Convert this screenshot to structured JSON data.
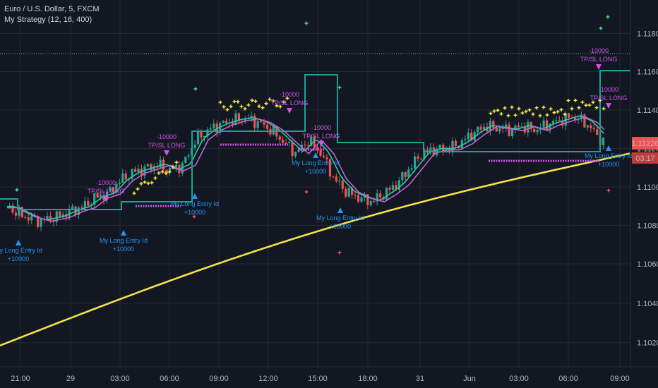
{
  "header": {
    "symbol_title": "Euro / U.S. Dollar, 5, FXCM",
    "study_title": "My Strategy (12, 16, 400)"
  },
  "price_badge": {
    "value": "1.11226",
    "countdown": "03:17",
    "color": "#ef5350"
  },
  "colors": {
    "background": "#131722",
    "grid": "#242733",
    "up_candle": "#26a69a",
    "down_candle": "#ef5350",
    "ma_fast": "#2ecc9a",
    "ma_slow": "#c463d9",
    "ma_long": "#f2e24a",
    "step_line": "#17a395",
    "exit_color": "#d055e8",
    "entry_color": "#2196f3",
    "plus_marker": "#f5e94b",
    "dotted_line": "#4db6ac"
  },
  "chart_data": {
    "type": "candlestick",
    "title": "Euro / U.S. Dollar, 5, FXCM",
    "ylim": [
      1.101,
      1.1197
    ],
    "y_ticks": [
      "1.11800",
      "1.11600",
      "1.11400",
      "1.11200",
      "1.11000",
      "1.10800",
      "1.10600",
      "1.10400",
      "1.10200"
    ],
    "x_ticks": [
      "21:00",
      "29",
      "03:00",
      "06:00",
      "09:00",
      "12:00",
      "15:00",
      "18:00",
      "31",
      "Jun",
      "03:00",
      "06:00",
      "09:00"
    ],
    "grid": true,
    "price_series_approx": [
      {
        "x": "20:00",
        "close": 1.109
      },
      {
        "x": "21:00",
        "close": 1.1085
      },
      {
        "x": "29 00:00",
        "close": 1.1088
      },
      {
        "x": "03:00",
        "close": 1.1094
      },
      {
        "x": "06:00",
        "close": 1.1112
      },
      {
        "x": "09:00",
        "close": 1.1128
      },
      {
        "x": "12:00",
        "close": 1.1135
      },
      {
        "x": "15:00",
        "close": 1.112
      },
      {
        "x": "18:00",
        "close": 1.1095
      },
      {
        "x": "31 00:00",
        "close": 1.1115
      },
      {
        "x": "Jun 00:00",
        "close": 1.1128
      },
      {
        "x": "03:00",
        "close": 1.113
      },
      {
        "x": "06:00",
        "close": 1.1135
      },
      {
        "x": "09:00",
        "close": 1.1123
      }
    ],
    "long_ma_approx": [
      {
        "x": "20:00",
        "value": 1.10185
      },
      {
        "x": "03:00",
        "value": 1.1036
      },
      {
        "x": "09:00",
        "value": 1.1055
      },
      {
        "x": "15:00",
        "value": 1.108
      },
      {
        "x": "31 00:00",
        "value": 1.1098
      },
      {
        "x": "03:00",
        "value": 1.1106
      },
      {
        "x": "09:00",
        "value": 1.1117
      }
    ],
    "annotations": [
      {
        "text": "-10000",
        "sub": "TP/SL LONG"
      },
      {
        "text": "My Long Entry Id",
        "sub": "+10000"
      }
    ],
    "last_price": "1.11226",
    "countdown": "03:17"
  }
}
